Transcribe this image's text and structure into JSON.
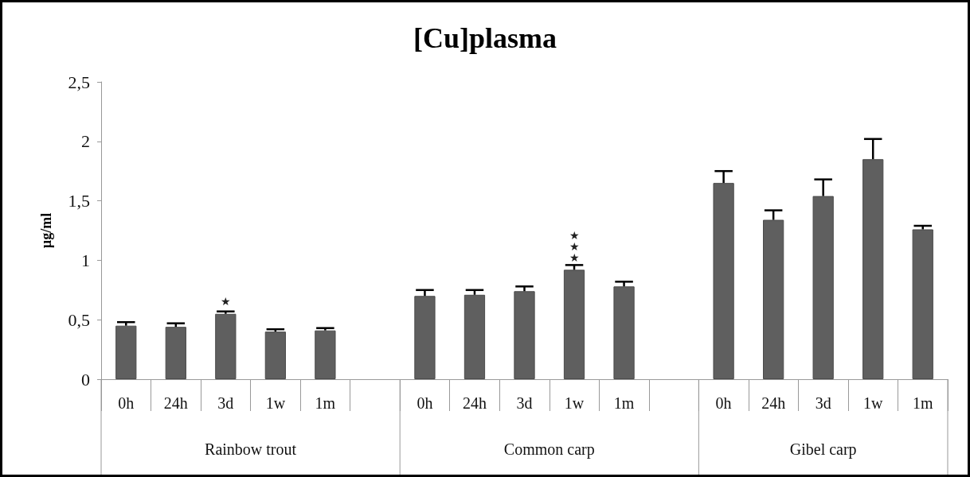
{
  "chart_data": {
    "type": "bar",
    "title": "[Cu]plasma",
    "ylabel": "µg/ml",
    "categories": [
      "0h",
      "24h",
      "3d",
      "1w",
      "1m",
      null,
      "0h",
      "24h",
      "3d",
      "1w",
      "1m",
      null,
      "0h",
      "24h",
      "3d",
      "1w",
      "1m"
    ],
    "values": [
      0.45,
      0.44,
      0.55,
      0.4,
      0.41,
      null,
      0.7,
      0.71,
      0.74,
      0.92,
      0.78,
      null,
      1.65,
      1.34,
      1.54,
      1.85,
      1.26
    ],
    "errors": [
      [
        0.45,
        0.48
      ],
      [
        0.44,
        0.47
      ],
      [
        0.55,
        0.57
      ],
      [
        0.4,
        0.42
      ],
      [
        0.41,
        0.43
      ],
      null,
      [
        0.7,
        0.75
      ],
      [
        0.71,
        0.75
      ],
      [
        0.74,
        0.78
      ],
      [
        0.92,
        0.96
      ],
      [
        0.78,
        0.82
      ],
      null,
      [
        1.65,
        1.75
      ],
      [
        1.34,
        1.42
      ],
      [
        1.54,
        1.68
      ],
      [
        1.85,
        2.02
      ],
      [
        1.26,
        1.29
      ]
    ],
    "value_labels": [
      null,
      null,
      "★",
      null,
      null,
      null,
      null,
      null,
      null,
      "★★★",
      null,
      null,
      null,
      null,
      null,
      null,
      null
    ],
    "color": "#5f5f5f",
    "ylim": [
      0,
      2.5
    ],
    "yticks": [
      {
        "value": 0,
        "label": "0"
      },
      {
        "value": 0.5,
        "label": "0,5"
      },
      {
        "value": 1,
        "label": "1"
      },
      {
        "value": 1.5,
        "label": "1,5"
      },
      {
        "value": 2,
        "label": "2"
      },
      {
        "value": 2.5,
        "label": "2,5"
      }
    ],
    "grid": false,
    "annotations": [
      "Rainbow trout",
      "Common carp",
      "Gibel carp"
    ]
  }
}
